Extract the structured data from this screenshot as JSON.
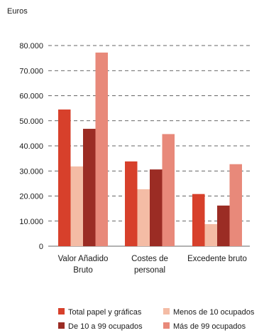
{
  "chart_data": {
    "type": "bar",
    "ylabel": "Euros",
    "ylim": [
      0,
      80000
    ],
    "yticks": [
      0,
      10000,
      20000,
      30000,
      40000,
      50000,
      60000,
      70000,
      80000
    ],
    "ytick_labels": [
      "0",
      "10.000",
      "20.000",
      "30.000",
      "40.000",
      "50.000",
      "60.000",
      "70.000",
      "80.000"
    ],
    "grid": "horizontal dashed",
    "legend_position": "bottom",
    "categories": [
      [
        "Valor Añadido",
        "Bruto"
      ],
      [
        "Costes de",
        "personal"
      ],
      [
        "Excedente bruto"
      ]
    ],
    "series": [
      {
        "name": "Total papel y gráficas",
        "color": "#d7402b",
        "values": [
          54500,
          33800,
          20800
        ]
      },
      {
        "name": "Menos de 10 ocupados",
        "color": "#f4bca5",
        "values": [
          31800,
          22700,
          8800
        ]
      },
      {
        "name": "De 10 a 99 ocupados",
        "color": "#9b2c24",
        "values": [
          46800,
          30600,
          16200
        ]
      },
      {
        "name": "Más de 99 ocupados",
        "color": "#e8897a",
        "values": [
          77200,
          44700,
          32700
        ]
      }
    ]
  }
}
